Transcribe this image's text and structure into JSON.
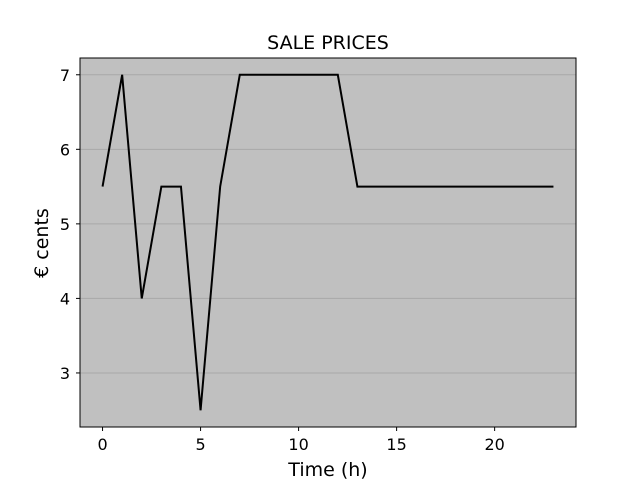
{
  "chart_data": {
    "type": "line",
    "title": "SALE PRICES",
    "xlabel": "Time (h)",
    "ylabel": "€ cents",
    "x_ticks": [
      0,
      5,
      10,
      15,
      20
    ],
    "y_ticks": [
      3,
      4,
      5,
      6,
      7
    ],
    "xlim": [
      -1.15,
      24.15
    ],
    "ylim": [
      2.275,
      7.225
    ],
    "grid": "horizontal",
    "legend": "none",
    "colors": {
      "plot_background": "#c0c0c0",
      "line": "#000000",
      "grid": "#a8a8a8"
    },
    "series": [
      {
        "x": [
          0,
          1,
          2,
          3,
          4,
          5,
          6,
          7,
          8,
          9,
          10,
          11,
          12,
          13,
          14,
          15,
          16,
          17,
          18,
          19,
          20,
          21,
          22,
          23
        ],
        "y": [
          5.5,
          7.0,
          4.0,
          5.5,
          5.5,
          2.5,
          5.5,
          7.0,
          7.0,
          7.0,
          7.0,
          7.0,
          7.0,
          5.5,
          5.5,
          5.5,
          5.5,
          5.5,
          5.5,
          5.5,
          5.5,
          5.5,
          5.5,
          5.5
        ]
      }
    ]
  }
}
